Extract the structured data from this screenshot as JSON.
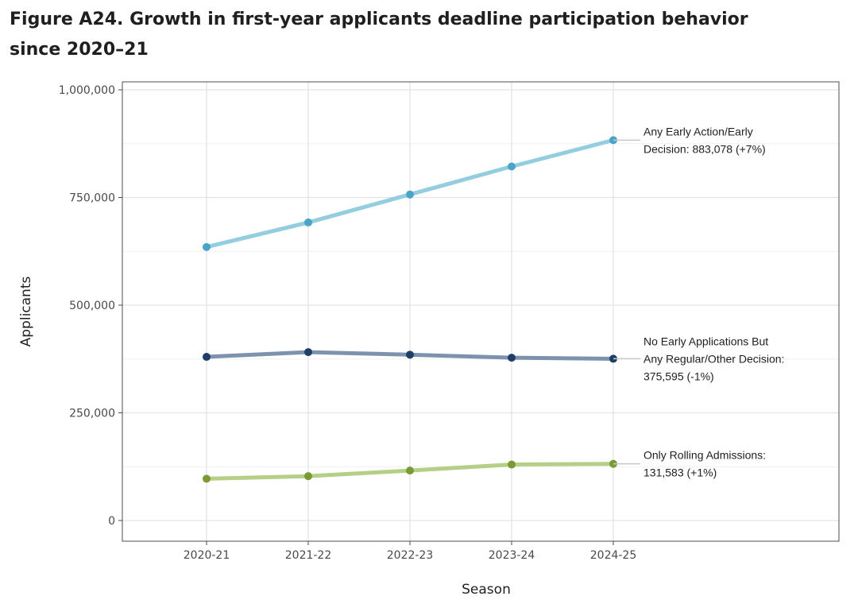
{
  "title": "Figure A24. Growth in first-year applicants deadline participation behavior since 2020–21",
  "chart_data": {
    "type": "line",
    "title": "Figure A24. Growth in first-year applicants deadline participation behavior since 2020–21",
    "xlabel": "Season",
    "ylabel": "Applicants",
    "categories": [
      "2020-21",
      "2021-22",
      "2022-23",
      "2023-24",
      "2024-25"
    ],
    "yticks": [
      0,
      250000,
      500000,
      750000,
      1000000
    ],
    "ytick_labels": [
      "0",
      "250,000",
      "500,000",
      "750,000",
      "1,000,000"
    ],
    "ylim": [
      -48000,
      1012000
    ],
    "grid": true,
    "series": [
      {
        "values": [
          635000,
          692000,
          757000,
          822000,
          883078
        ],
        "line_color": "#92cde0",
        "point_color": "#4aa3c9",
        "annotation": [
          "Any Early Action/Early",
          "Decision: 883,078 (+7%)"
        ]
      },
      {
        "values": [
          380000,
          391000,
          385000,
          378000,
          375595
        ],
        "line_color": "#7d93ad",
        "point_color": "#1f3d66",
        "annotation": [
          "No Early Applications But",
          "Any Regular/Other Decision:",
          "375,595 (-1%)"
        ]
      },
      {
        "values": [
          97000,
          103000,
          116000,
          130000,
          131583
        ],
        "line_color": "#b5cf87",
        "point_color": "#7a9a34",
        "annotation": [
          "Only Rolling Admissions:",
          "131,583 (+1%)"
        ]
      }
    ]
  }
}
